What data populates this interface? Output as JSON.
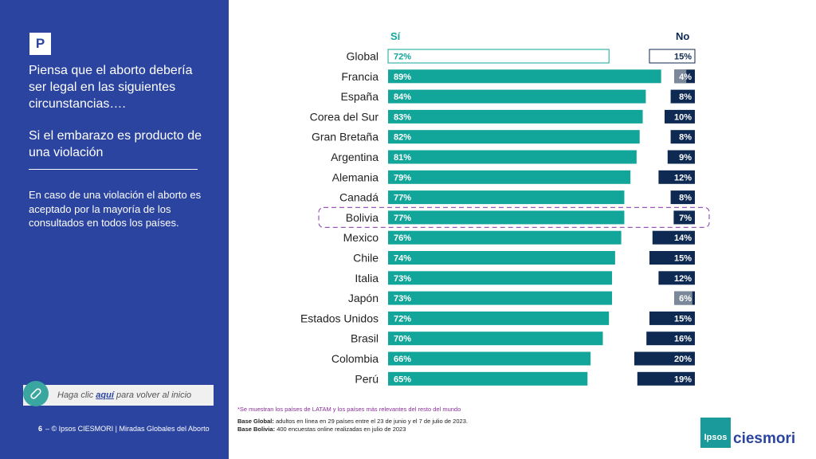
{
  "sidebar": {
    "badge": "P",
    "question": "Piensa que el aborto debería ser legal en las siguientes circunstancias….",
    "condition": "Si el embarazo es producto de una violación",
    "insight": "En caso de una violación el aborto es aceptado por la mayoría de los consultados en todos los países.",
    "link_prefix": "Haga clic ",
    "link_word": "aquí",
    "link_suffix": " para volver al inicio",
    "page_number": "6",
    "footer": "–  © Ipsos CIESMORI | Miradas Globales del Aborto"
  },
  "legend": {
    "si": "Sí",
    "no": "No"
  },
  "footnote": "*Se muestran los países de LATAM y los países más relevantes del resto del mundo",
  "base_global_label": "Base Global:",
  "base_global_text": " adultos en línea en 29 países entre el 23 de junio y el 7 de julio de 2023.",
  "base_bolivia_label": "Base Bolivia:",
  "base_bolivia_text": " 400 encuestas online realizadas en julio de 2023",
  "logo": {
    "box": "Ipsos",
    "text": "ciesmori"
  },
  "colors": {
    "si": "#12a59a",
    "no": "#0f2a52",
    "no_small": "#7a8899",
    "sidebar": "#2b44a0",
    "highlight": "#9b59b6"
  },
  "chart_data": {
    "type": "bar",
    "orientation": "horizontal",
    "categories": [
      "Global",
      "Francia",
      "España",
      "Corea del Sur",
      "Gran Bretaña",
      "Argentina",
      "Alemania",
      "Canadá",
      "Bolivia",
      "Mexico",
      "Chile",
      "Italia",
      "Japón",
      "Estados Unidos",
      "Brasil",
      "Colombia",
      "Perú"
    ],
    "series": [
      {
        "name": "Sí",
        "values": [
          72,
          89,
          84,
          83,
          82,
          81,
          79,
          77,
          77,
          76,
          74,
          73,
          73,
          72,
          70,
          66,
          65
        ],
        "labels": [
          "72%",
          "89%",
          "84%",
          "83%",
          "82%",
          "81%",
          "79%",
          "77%",
          "77%",
          "76%",
          "74%",
          "73%",
          "73%",
          "72%",
          "70%",
          "66%",
          "65%"
        ]
      },
      {
        "name": "No",
        "values": [
          15,
          4,
          8,
          10,
          8,
          9,
          12,
          8,
          7,
          14,
          15,
          12,
          6,
          15,
          16,
          20,
          19
        ],
        "labels": [
          "15%",
          "4%",
          "8%",
          "10%",
          "8%",
          "9%",
          "12%",
          "8%",
          "7%",
          "14%",
          "15%",
          "12%",
          "6%",
          "15%",
          "16%",
          "20%",
          "19%"
        ]
      }
    ],
    "highlighted": "Bolivia",
    "outlined": "Global"
  }
}
